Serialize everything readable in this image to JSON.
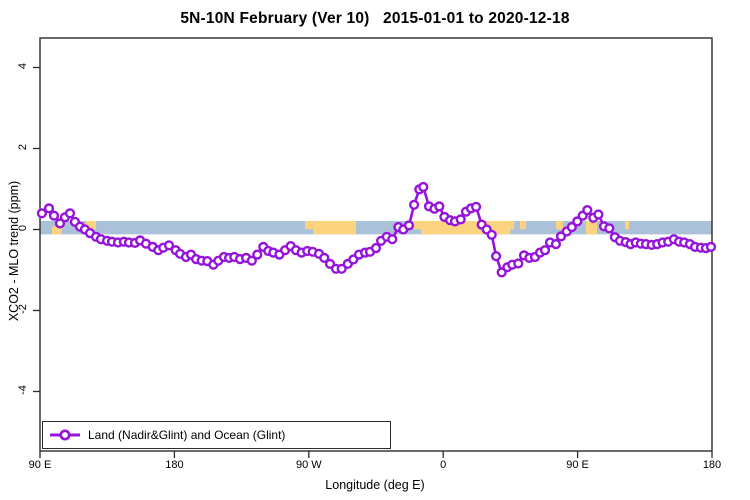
{
  "title": "5N-10N February (Ver 10)   2015-01-01 to 2020-12-18",
  "chart_data": {
    "type": "line",
    "title": "5N-10N February (Ver 10)   2015-01-01 to 2020-12-18",
    "xlabel": "Longitude (deg E)",
    "ylabel": "XCO2 - MLO trend (ppm)",
    "x_axis": {
      "tick_labels": [
        "90 E",
        "180",
        "90 W",
        "0",
        "90 E",
        "180"
      ],
      "tick_offsets_deg": [
        0,
        90,
        180,
        270,
        360,
        450
      ],
      "note_span": "longitude wraps eastward from 90E across 450 degrees",
      "xlim_offset_deg": [
        0,
        450
      ]
    },
    "y_axis": {
      "tick_labels": [
        "-4",
        "-2",
        "0",
        "2",
        "4"
      ],
      "tick_values": [
        -4,
        -2,
        0,
        2,
        4
      ],
      "ylim": [
        -5.4,
        4.7
      ],
      "grid": false
    },
    "legend": {
      "position": "bottom-left-inside",
      "entries": [
        {
          "label": "Land (Nadir&Glint) and Ocean (Glint)",
          "marker": "open-circle-on-line",
          "color": "#9513da"
        }
      ]
    },
    "reference_band": {
      "description": "land/ocean strip along 5N-10N latitude band",
      "y_from": -0.12,
      "y_to": 0.21,
      "ocean_color": "#abc0d9",
      "land_color": "#fcd37f",
      "land_segments_offset_deg": [
        {
          "from": 8.0,
          "to": 14.7,
          "part": "bottom"
        },
        {
          "from": 30.8,
          "to": 37.5,
          "part": "top"
        },
        {
          "from": 177.5,
          "to": 183.0,
          "part": "top"
        },
        {
          "from": 183.0,
          "to": 211.6,
          "part": "full"
        },
        {
          "from": 249.8,
          "to": 255.2,
          "part": "top"
        },
        {
          "from": 255.2,
          "to": 315.0,
          "part": "full"
        },
        {
          "from": 315.0,
          "to": 317.5,
          "part": "top"
        },
        {
          "from": 321.4,
          "to": 325.5,
          "part": "top"
        },
        {
          "from": 345.5,
          "to": 350.2,
          "part": "top"
        },
        {
          "from": 365.6,
          "to": 373.0,
          "part": "full"
        },
        {
          "from": 375.0,
          "to": 377.0,
          "part": "top"
        },
        {
          "from": 391.8,
          "to": 394.4,
          "part": "top"
        }
      ]
    },
    "series": [
      {
        "name": "Land (Nadir&Glint) and Ocean (Glint)",
        "color": "#9513da",
        "marker": "open-circle",
        "x_offset_deg": [
          1.3,
          6.0,
          9.4,
          13.4,
          16.7,
          20.1,
          23.4,
          26.8,
          30.1,
          33.5,
          37.5,
          40.8,
          44.9,
          48.2,
          52.2,
          56.2,
          59.6,
          63.6,
          67.0,
          71.0,
          75.5,
          79.2,
          82.6,
          86.4,
          90.9,
          93.8,
          97.8,
          101.1,
          104.5,
          108.3,
          112.0,
          116.1,
          119.4,
          123.2,
          126.6,
          130.1,
          133.9,
          138.0,
          141.8,
          145.5,
          149.5,
          152.9,
          156.2,
          160.3,
          164.1,
          167.9,
          171.4,
          175.2,
          179.0,
          182.6,
          186.8,
          190.4,
          194.2,
          198.2,
          202.0,
          206.1,
          209.8,
          213.6,
          217.7,
          221.0,
          225.0,
          228.4,
          232.2,
          235.9,
          240.0,
          243.3,
          247.1,
          250.5,
          254.0,
          256.7,
          260.5,
          264.1,
          267.4,
          270.8,
          274.6,
          277.9,
          281.7,
          285.3,
          288.6,
          292.0,
          295.8,
          299.1,
          302.5,
          305.4,
          309.2,
          313.0,
          316.3,
          320.3,
          324.1,
          327.7,
          331.5,
          334.8,
          338.2,
          341.5,
          345.5,
          348.9,
          352.7,
          356.1,
          359.8,
          363.4,
          366.5,
          370.5,
          373.9,
          377.7,
          381.2,
          385.0,
          388.4,
          392.2,
          395.5,
          398.9,
          402.4,
          405.8,
          409.6,
          413.3,
          416.9,
          420.7,
          424.5,
          428.0,
          431.4,
          435.2,
          438.6,
          442.6,
          445.9,
          449.3
        ],
        "values": [
          0.4,
          0.52,
          0.34,
          0.15,
          0.3,
          0.4,
          0.19,
          0.07,
          0.0,
          -0.09,
          -0.18,
          -0.24,
          -0.28,
          -0.3,
          -0.32,
          -0.3,
          -0.32,
          -0.33,
          -0.27,
          -0.35,
          -0.43,
          -0.51,
          -0.45,
          -0.39,
          -0.51,
          -0.6,
          -0.68,
          -0.62,
          -0.73,
          -0.77,
          -0.78,
          -0.87,
          -0.77,
          -0.68,
          -0.7,
          -0.68,
          -0.73,
          -0.7,
          -0.77,
          -0.62,
          -0.43,
          -0.53,
          -0.57,
          -0.62,
          -0.51,
          -0.41,
          -0.51,
          -0.57,
          -0.53,
          -0.55,
          -0.6,
          -0.7,
          -0.85,
          -0.97,
          -0.97,
          -0.85,
          -0.74,
          -0.62,
          -0.57,
          -0.55,
          -0.46,
          -0.28,
          -0.18,
          -0.24,
          0.06,
          0.0,
          0.1,
          0.61,
          0.99,
          1.05,
          0.57,
          0.51,
          0.57,
          0.31,
          0.23,
          0.2,
          0.25,
          0.44,
          0.52,
          0.56,
          0.12,
          0.0,
          -0.13,
          -0.66,
          -1.06,
          -0.93,
          -0.87,
          -0.84,
          -0.64,
          -0.7,
          -0.68,
          -0.57,
          -0.51,
          -0.32,
          -0.36,
          -0.17,
          -0.05,
          0.06,
          0.2,
          0.34,
          0.48,
          0.29,
          0.37,
          0.08,
          0.03,
          -0.19,
          -0.28,
          -0.31,
          -0.36,
          -0.32,
          -0.35,
          -0.36,
          -0.38,
          -0.36,
          -0.32,
          -0.3,
          -0.24,
          -0.3,
          -0.32,
          -0.36,
          -0.43,
          -0.45,
          -0.46,
          -0.43
        ]
      }
    ]
  },
  "colors": {
    "curve": "#9513da",
    "ocean_band": "#abc0d9",
    "land_band": "#fcd37f",
    "axis": "#2b2b2b",
    "text": "#000000"
  }
}
